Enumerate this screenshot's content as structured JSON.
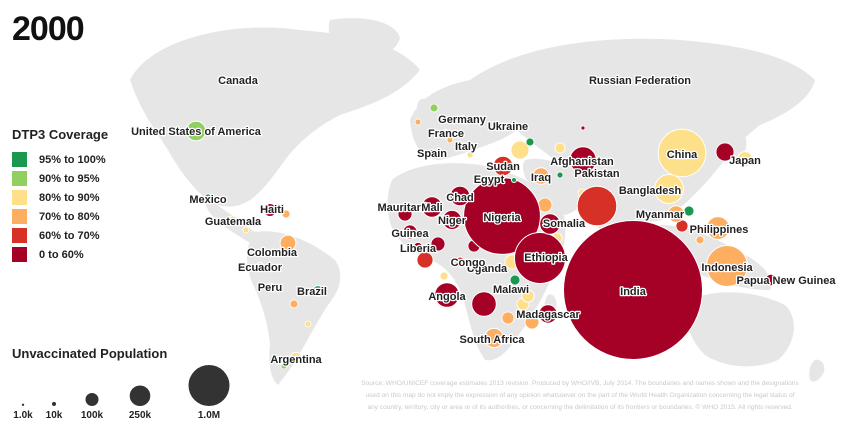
{
  "year": "2000",
  "legend": {
    "title": "DTP3 Coverage",
    "items": [
      {
        "label": "95% to 100%",
        "color": "#1a9850"
      },
      {
        "label": "90% to 95%",
        "color": "#91cf60"
      },
      {
        "label": "80% to 90%",
        "color": "#fee08b"
      },
      {
        "label": "70% to 80%",
        "color": "#fdae61"
      },
      {
        "label": "60% to 70%",
        "color": "#d73027"
      },
      {
        "label": "0 to 60%",
        "color": "#a50026"
      }
    ]
  },
  "size_legend": {
    "title": "Unvaccinated Population",
    "items": [
      {
        "label": "1.0k",
        "value": 1000
      },
      {
        "label": "10k",
        "value": 10000
      },
      {
        "label": "100k",
        "value": 100000
      },
      {
        "label": "250k",
        "value": 250000
      },
      {
        "label": "1.0M",
        "value": 1000000
      }
    ]
  },
  "source_text": "Source: WHO/UNICEF coverage estimates 2013 revision. Produced by WHO/IVB, July 2014. The boundaries and names shown and the designations used on this map do not imply the expression of any opinion whatsoever on the part of the World Health Organization concerning the legal status of any country, territory, city or area or of its authorities, or concerning the delimitation of its frontiers or boundaries. © WHO 2015. All rights reserved.",
  "countries": [
    {
      "name": "India",
      "coverage": "0 to 60%",
      "unvaccinated": 11500000
    },
    {
      "name": "Nigeria",
      "coverage": "0 to 60%",
      "unvaccinated": 3500000
    },
    {
      "name": "Ethiopia",
      "coverage": "0 to 60%",
      "unvaccinated": 1550000
    },
    {
      "name": "China",
      "coverage": "80% to 90%",
      "unvaccinated": 1350000
    },
    {
      "name": "Pakistan",
      "coverage": "60% to 70%",
      "unvaccinated": 930000
    },
    {
      "name": "Indonesia",
      "coverage": "70% to 80%",
      "unvaccinated": 1000000
    },
    {
      "name": "Bangladesh",
      "coverage": "80% to 90%",
      "unvaccinated": 500000
    },
    {
      "name": "Afghanistan",
      "coverage": "0 to 60%",
      "unvaccinated": 420000
    },
    {
      "name": "Sudan",
      "coverage": "60% to 70%",
      "unvaccinated": 230000
    },
    {
      "name": "Angola",
      "coverage": "0 to 60%",
      "unvaccinated": 360000
    },
    {
      "name": "Uganda",
      "coverage": "0 to 60%",
      "unvaccinated": 360000
    },
    {
      "name": "Philippines",
      "coverage": "70% to 80%",
      "unvaccinated": 310000
    },
    {
      "name": "Chad",
      "coverage": "0 to 60%",
      "unvaccinated": 230000
    },
    {
      "name": "Niger",
      "coverage": "0 to 60%",
      "unvaccinated": 220000
    },
    {
      "name": "Guinea",
      "coverage": "0 to 60%",
      "unvaccinated": 120000
    },
    {
      "name": "Liberia",
      "coverage": "0 to 60%",
      "unvaccinated": 50000
    },
    {
      "name": "Congo",
      "coverage": "60% to 70%",
      "unvaccinated": 60000
    },
    {
      "name": "Somalia",
      "coverage": "0 to 60%",
      "unvaccinated": 250000
    },
    {
      "name": "Madagascar",
      "coverage": "0 to 60%",
      "unvaccinated": 200000
    },
    {
      "name": "Malawi",
      "coverage": "80% to 90%",
      "unvaccinated": 90000
    },
    {
      "name": "South Africa",
      "coverage": "70% to 80%",
      "unvaccinated": 220000
    },
    {
      "name": "Mauritania",
      "coverage": "0 to 60%",
      "unvaccinated": 120000
    },
    {
      "name": "Mali",
      "coverage": "0 to 60%",
      "unvaccinated": 250000
    },
    {
      "name": "Myanmar",
      "coverage": "70% to 80%",
      "unvaccinated": 160000
    },
    {
      "name": "Papua New Guinea",
      "coverage": "0 to 60%",
      "unvaccinated": 80000
    },
    {
      "name": "Japan",
      "coverage": "80% to 90%",
      "unvaccinated": 130000
    },
    {
      "name": "Iraq",
      "coverage": "70% to 80%",
      "unvaccinated": 160000
    },
    {
      "name": "Egypt",
      "coverage": "95% to 100%",
      "unvaccinated": 10000
    },
    {
      "name": "Haiti",
      "coverage": "0 to 60%",
      "unvaccinated": 100000
    },
    {
      "name": "United States of America",
      "coverage": "90% to 95%",
      "unvaccinated": 230000
    },
    {
      "name": "Mexico",
      "coverage": "95% to 100%",
      "unvaccinated": 40000
    },
    {
      "name": "Guatemala",
      "coverage": "80% to 90%",
      "unvaccinated": 40000
    },
    {
      "name": "Colombia",
      "coverage": "70% to 80%",
      "unvaccinated": 150000
    },
    {
      "name": "Ecuador",
      "coverage": "80% to 90%",
      "unvaccinated": 30000
    },
    {
      "name": "Peru",
      "coverage": "80% to 90%",
      "unvaccinated": 40000
    },
    {
      "name": "Brazil",
      "coverage": "95% to 100%",
      "unvaccinated": 70000
    },
    {
      "name": "Argentina",
      "coverage": "80% to 90%",
      "unvaccinated": 80000
    },
    {
      "name": "Canada",
      "coverage": "90% to 95%",
      "unvaccinated": 10000
    },
    {
      "name": "Russian Federation",
      "coverage": "95% to 100%",
      "unvaccinated": 30000
    },
    {
      "name": "Germany",
      "coverage": "95% to 100%",
      "unvaccinated": 10000
    },
    {
      "name": "Ukraine",
      "coverage": "95% to 100%",
      "unvaccinated": 5000
    },
    {
      "name": "France",
      "coverage": "95% to 100%",
      "unvaccinated": 10000
    },
    {
      "name": "Italy",
      "coverage": "95% to 100%",
      "unvaccinated": 10000
    },
    {
      "name": "Spain",
      "coverage": "95% to 100%",
      "unvaccinated": 5000
    }
  ]
}
